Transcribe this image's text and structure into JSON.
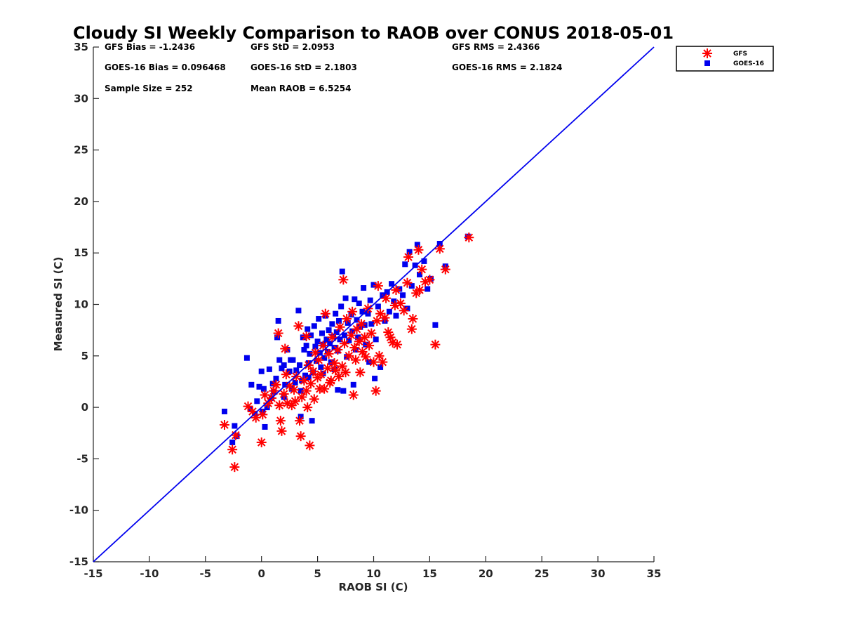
{
  "chart_data": {
    "type": "scatter",
    "title": "Cloudy SI Weekly Comparison to RAOB over CONUS 2018-05-01",
    "xlabel": "RAOB SI (C)",
    "ylabel": "Measured SI (C)",
    "xlim": [
      -15,
      35
    ],
    "ylim": [
      -15,
      35
    ],
    "xticks": [
      "-15",
      "-10",
      "-5",
      "0",
      "5",
      "10",
      "15",
      "20",
      "25",
      "30",
      "35"
    ],
    "yticks": [
      "-15",
      "-10",
      "-5",
      "0",
      "5",
      "10",
      "15",
      "20",
      "25",
      "30",
      "35"
    ],
    "grid": false,
    "legend_position": "outside top-right",
    "reference_line": {
      "from": [
        -15,
        -15
      ],
      "to": [
        35,
        35
      ],
      "color": "#0000ee"
    },
    "stats": [
      {
        "id": "gfs_bias",
        "text": "GFS Bias = -1.2436"
      },
      {
        "id": "gfs_std",
        "text": "GFS StD = 2.0953"
      },
      {
        "id": "gfs_rms",
        "text": "GFS RMS = 2.4366"
      },
      {
        "id": "goes_bias",
        "text": "GOES-16 Bias = 0.096468"
      },
      {
        "id": "goes_std",
        "text": "GOES-16 StD = 2.1803"
      },
      {
        "id": "goes_rms",
        "text": "GOES-16 RMS = 2.1824"
      },
      {
        "id": "sample_size",
        "text": "Sample Size = 252"
      },
      {
        "id": "mean_raob",
        "text": "Mean RAOB = 6.5254"
      }
    ],
    "series": [
      {
        "name": "GFS",
        "marker": "asterisk",
        "color": "#ff0000",
        "points": [
          [
            -3.3,
            -1.7
          ],
          [
            -2.6,
            -4.1
          ],
          [
            -2.4,
            -5.8
          ],
          [
            -2.3,
            -2.7
          ],
          [
            -1.2,
            0.1
          ],
          [
            -0.8,
            -0.4
          ],
          [
            -0.5,
            -1.0
          ],
          [
            0.0,
            -3.4
          ],
          [
            0.1,
            -0.7
          ],
          [
            0.3,
            1.2
          ],
          [
            0.6,
            0.4
          ],
          [
            0.9,
            0.9
          ],
          [
            1.1,
            1.6
          ],
          [
            1.3,
            2.2
          ],
          [
            1.5,
            7.2
          ],
          [
            1.6,
            0.2
          ],
          [
            1.7,
            -1.3
          ],
          [
            1.8,
            -2.3
          ],
          [
            2.0,
            1.3
          ],
          [
            2.1,
            5.7
          ],
          [
            2.3,
            0.4
          ],
          [
            2.5,
            2.1
          ],
          [
            2.7,
            0.2
          ],
          [
            2.9,
            1.7
          ],
          [
            3.1,
            3.0
          ],
          [
            3.3,
            7.9
          ],
          [
            3.4,
            -1.3
          ],
          [
            3.5,
            -2.8
          ],
          [
            3.6,
            1.0
          ],
          [
            3.8,
            2.6
          ],
          [
            4.0,
            6.9
          ],
          [
            4.1,
            0.0
          ],
          [
            4.2,
            4.1
          ],
          [
            4.3,
            -3.7
          ],
          [
            4.4,
            2.3
          ],
          [
            4.6,
            3.5
          ],
          [
            4.7,
            0.8
          ],
          [
            4.8,
            5.3
          ],
          [
            5.0,
            2.9
          ],
          [
            5.1,
            4.6
          ],
          [
            5.3,
            3.2
          ],
          [
            5.5,
            6.0
          ],
          [
            5.6,
            1.8
          ],
          [
            5.7,
            9.1
          ],
          [
            5.9,
            3.8
          ],
          [
            6.0,
            5.2
          ],
          [
            6.2,
            2.6
          ],
          [
            6.3,
            6.8
          ],
          [
            6.5,
            4.3
          ],
          [
            6.6,
            3.6
          ],
          [
            6.8,
            5.6
          ],
          [
            6.9,
            3.0
          ],
          [
            7.0,
            7.8
          ],
          [
            7.2,
            4.0
          ],
          [
            7.3,
            12.4
          ],
          [
            7.4,
            6.2
          ],
          [
            7.5,
            3.4
          ],
          [
            7.6,
            8.6
          ],
          [
            7.8,
            5.0
          ],
          [
            8.0,
            7.0
          ],
          [
            8.1,
            9.3
          ],
          [
            8.2,
            1.2
          ],
          [
            8.3,
            5.8
          ],
          [
            8.4,
            4.6
          ],
          [
            8.5,
            7.6
          ],
          [
            8.7,
            6.4
          ],
          [
            8.8,
            3.4
          ],
          [
            8.9,
            8.1
          ],
          [
            9.0,
            5.4
          ],
          [
            9.2,
            6.8
          ],
          [
            9.3,
            4.9
          ],
          [
            9.5,
            9.6
          ],
          [
            9.6,
            6.0
          ],
          [
            9.8,
            7.2
          ],
          [
            10.0,
            4.4
          ],
          [
            10.2,
            1.6
          ],
          [
            10.3,
            8.4
          ],
          [
            10.4,
            11.8
          ],
          [
            10.5,
            5.0
          ],
          [
            10.6,
            9.1
          ],
          [
            10.8,
            4.4
          ],
          [
            11.0,
            8.7
          ],
          [
            11.1,
            10.6
          ],
          [
            11.3,
            7.3
          ],
          [
            11.5,
            6.8
          ],
          [
            11.7,
            6.3
          ],
          [
            11.9,
            9.9
          ],
          [
            12.0,
            11.4
          ],
          [
            12.1,
            6.1
          ],
          [
            12.4,
            10.1
          ],
          [
            12.7,
            9.4
          ],
          [
            13.0,
            12.1
          ],
          [
            13.1,
            14.6
          ],
          [
            13.4,
            7.6
          ],
          [
            13.5,
            8.6
          ],
          [
            13.8,
            11.1
          ],
          [
            14.0,
            15.3
          ],
          [
            14.1,
            11.4
          ],
          [
            14.3,
            13.4
          ],
          [
            14.6,
            12.2
          ],
          [
            15.0,
            12.4
          ],
          [
            15.5,
            6.1
          ],
          [
            15.9,
            15.4
          ],
          [
            16.4,
            13.4
          ],
          [
            18.5,
            16.5
          ],
          [
            2.2,
            3.2
          ],
          [
            3.0,
            0.6
          ],
          [
            4.0,
            1.6
          ],
          [
            5.2,
            1.8
          ],
          [
            6.1,
            2.4
          ]
        ]
      },
      {
        "name": "GOES-16",
        "marker": "square",
        "color": "#0000ee",
        "points": [
          [
            -3.3,
            -0.4
          ],
          [
            -2.6,
            -3.4
          ],
          [
            -2.4,
            -1.8
          ],
          [
            -2.2,
            -2.8
          ],
          [
            -1.3,
            4.8
          ],
          [
            -1.0,
            -0.2
          ],
          [
            -0.9,
            2.2
          ],
          [
            -0.6,
            -0.6
          ],
          [
            -0.4,
            0.6
          ],
          [
            -0.2,
            2.0
          ],
          [
            0.0,
            3.5
          ],
          [
            0.1,
            -0.4
          ],
          [
            0.2,
            1.8
          ],
          [
            0.3,
            -1.9
          ],
          [
            0.5,
            0.0
          ],
          [
            0.7,
            3.7
          ],
          [
            0.9,
            0.9
          ],
          [
            1.1,
            1.5
          ],
          [
            1.3,
            2.8
          ],
          [
            1.4,
            6.8
          ],
          [
            1.5,
            8.4
          ],
          [
            1.6,
            4.6
          ],
          [
            1.8,
            3.8
          ],
          [
            2.0,
            4.1
          ],
          [
            2.1,
            2.2
          ],
          [
            2.3,
            5.6
          ],
          [
            2.5,
            3.5
          ],
          [
            2.7,
            1.8
          ],
          [
            2.8,
            4.6
          ],
          [
            3.0,
            2.4
          ],
          [
            3.1,
            3.6
          ],
          [
            3.3,
            9.4
          ],
          [
            3.4,
            4.1
          ],
          [
            3.5,
            -0.9
          ],
          [
            3.6,
            2.6
          ],
          [
            3.7,
            6.8
          ],
          [
            3.8,
            5.6
          ],
          [
            3.9,
            3.1
          ],
          [
            4.0,
            6.0
          ],
          [
            4.1,
            7.6
          ],
          [
            4.2,
            4.3
          ],
          [
            4.3,
            5.2
          ],
          [
            4.4,
            7.0
          ],
          [
            4.5,
            -1.3
          ],
          [
            4.6,
            3.4
          ],
          [
            4.7,
            7.9
          ],
          [
            4.8,
            5.9
          ],
          [
            4.9,
            4.5
          ],
          [
            5.0,
            6.4
          ],
          [
            5.1,
            8.6
          ],
          [
            5.2,
            5.3
          ],
          [
            5.3,
            3.9
          ],
          [
            5.4,
            7.2
          ],
          [
            5.5,
            6.1
          ],
          [
            5.6,
            4.8
          ],
          [
            5.7,
            8.9
          ],
          [
            5.8,
            6.6
          ],
          [
            5.9,
            5.4
          ],
          [
            6.0,
            7.5
          ],
          [
            6.1,
            6.2
          ],
          [
            6.2,
            4.4
          ],
          [
            6.3,
            8.1
          ],
          [
            6.4,
            6.9
          ],
          [
            6.5,
            5.8
          ],
          [
            6.6,
            9.1
          ],
          [
            6.7,
            7.3
          ],
          [
            6.8,
            5.5
          ],
          [
            6.9,
            8.4
          ],
          [
            7.0,
            6.6
          ],
          [
            7.1,
            9.8
          ],
          [
            7.2,
            13.2
          ],
          [
            7.3,
            1.6
          ],
          [
            7.4,
            7.0
          ],
          [
            7.5,
            10.6
          ],
          [
            7.6,
            4.9
          ],
          [
            7.7,
            8.2
          ],
          [
            7.8,
            6.5
          ],
          [
            8.0,
            9.0
          ],
          [
            8.1,
            7.4
          ],
          [
            8.2,
            2.2
          ],
          [
            8.3,
            10.5
          ],
          [
            8.4,
            5.6
          ],
          [
            8.5,
            8.5
          ],
          [
            8.6,
            6.8
          ],
          [
            8.7,
            10.1
          ],
          [
            8.8,
            7.8
          ],
          [
            9.0,
            9.3
          ],
          [
            9.1,
            11.6
          ],
          [
            9.2,
            8.0
          ],
          [
            9.3,
            6.1
          ],
          [
            9.5,
            9.1
          ],
          [
            9.6,
            4.4
          ],
          [
            9.7,
            10.4
          ],
          [
            9.8,
            8.1
          ],
          [
            10.0,
            11.9
          ],
          [
            10.1,
            2.8
          ],
          [
            10.2,
            6.6
          ],
          [
            10.4,
            9.8
          ],
          [
            10.6,
            3.9
          ],
          [
            10.8,
            10.9
          ],
          [
            11.0,
            8.4
          ],
          [
            11.2,
            11.2
          ],
          [
            11.4,
            9.3
          ],
          [
            11.6,
            12.0
          ],
          [
            11.8,
            10.3
          ],
          [
            12.0,
            8.9
          ],
          [
            12.3,
            11.5
          ],
          [
            12.6,
            10.9
          ],
          [
            12.8,
            13.9
          ],
          [
            13.0,
            9.6
          ],
          [
            13.2,
            15.1
          ],
          [
            13.4,
            11.8
          ],
          [
            13.7,
            13.8
          ],
          [
            13.9,
            15.8
          ],
          [
            14.1,
            12.9
          ],
          [
            14.5,
            14.2
          ],
          [
            14.8,
            11.5
          ],
          [
            15.1,
            12.5
          ],
          [
            15.5,
            8.0
          ],
          [
            15.9,
            15.9
          ],
          [
            16.4,
            13.7
          ],
          [
            18.4,
            16.6
          ],
          [
            1.0,
            2.3
          ],
          [
            2.0,
            1.0
          ],
          [
            3.5,
            1.6
          ],
          [
            4.2,
            2.9
          ],
          [
            5.5,
            3.3
          ],
          [
            6.5,
            3.7
          ],
          [
            6.8,
            1.7
          ],
          [
            2.6,
            4.6
          ]
        ]
      }
    ]
  }
}
